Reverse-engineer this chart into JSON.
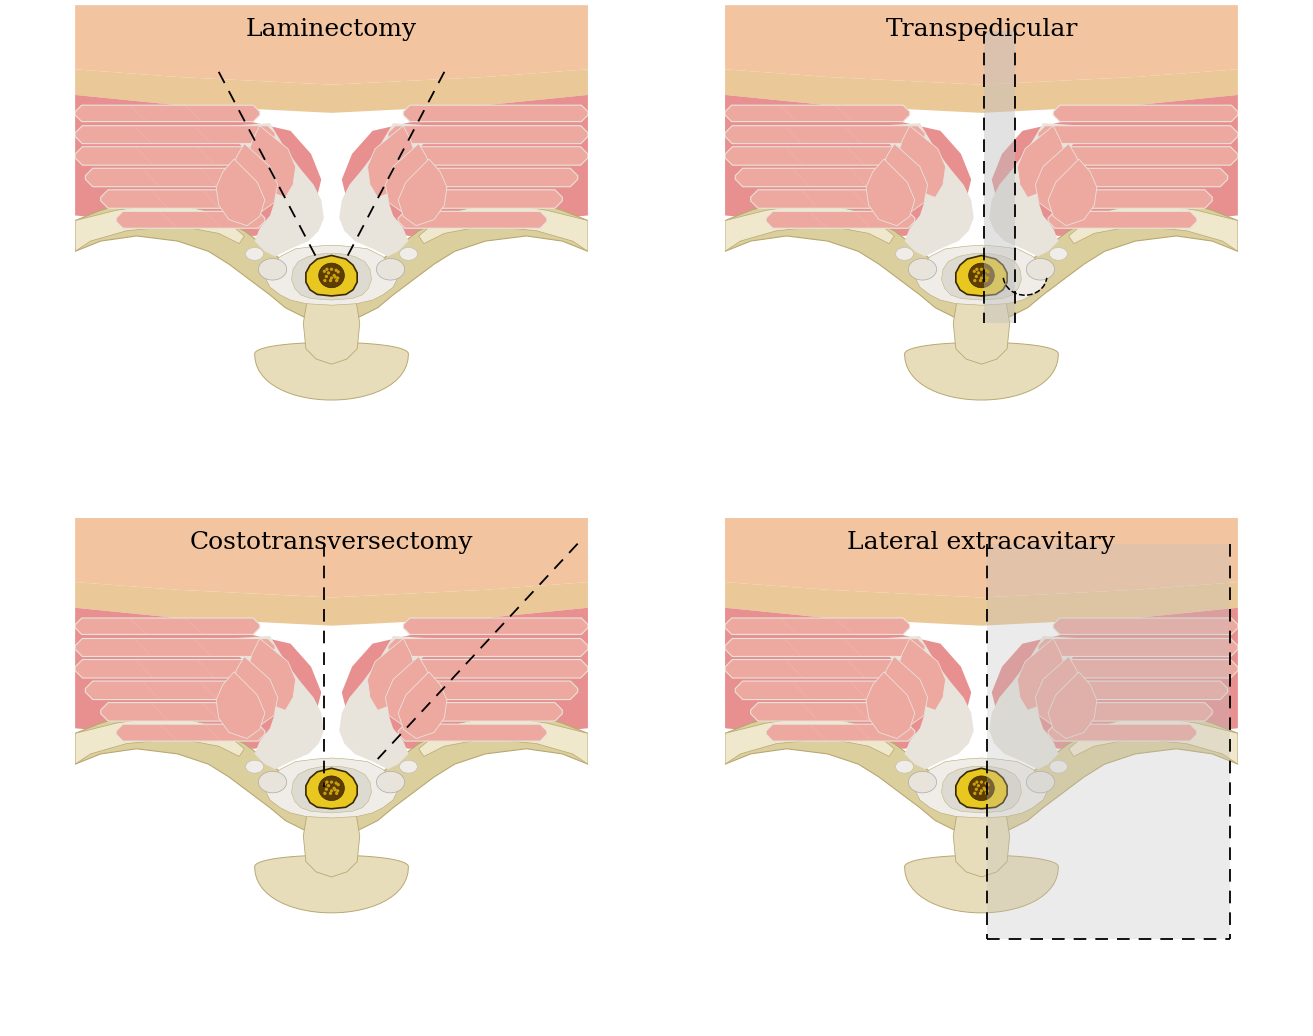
{
  "panels": [
    {
      "label": "Laminectomy",
      "row": 0,
      "col": 0,
      "type": "laminectomy"
    },
    {
      "label": "Transpedicular",
      "row": 0,
      "col": 1,
      "type": "transpedicular"
    },
    {
      "label": "Costotransversectomy",
      "row": 1,
      "col": 0,
      "type": "costotransversectomy"
    },
    {
      "label": "Lateral extracavitary",
      "row": 1,
      "col": 1,
      "type": "lateral_extracavitary"
    }
  ],
  "colors": {
    "background": "#FFFFFF",
    "skin_outer": "#F2C4A0",
    "skin_fat": "#EAC898",
    "skin_inner": "#E8C090",
    "muscle_base": "#E89090",
    "muscle_fill": "#EDA8A0",
    "muscle_light": "#F5C0B8",
    "muscle_edge": "#D07878",
    "fascia_white": "#E8E4DC",
    "bone_main": "#DCCF9E",
    "bone_light": "#E8DDBA",
    "bone_highlight": "#F0E8CC",
    "bone_shadow": "#C4B580",
    "bone_edge": "#B8A870",
    "white_tissue": "#F0EDE8",
    "cord_yellow": "#E8C820",
    "cord_dark_outer": "#3A2800",
    "cord_dark_inner": "#5C3C00",
    "cord_dot": "#C8A010",
    "approach_gray": "#C0C0C0",
    "dashed_color": "#111111"
  },
  "label_fontsize": 18,
  "label_font": "DejaVu Serif"
}
